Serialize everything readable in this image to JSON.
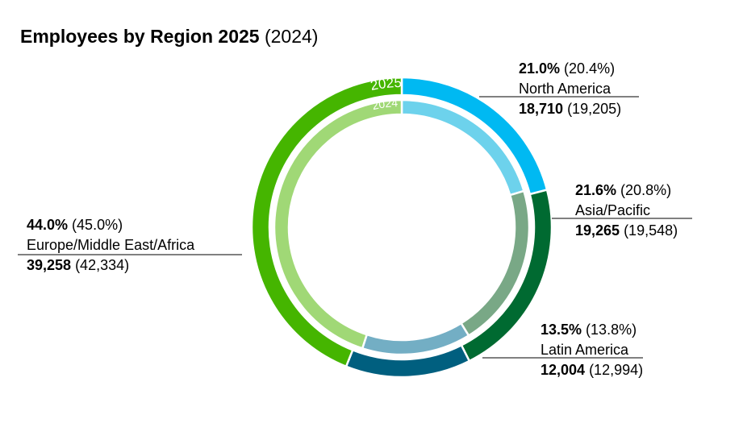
{
  "title": {
    "main": "Employees by Region 2025",
    "prior": "(2024)"
  },
  "ring_labels": {
    "outer": "2025",
    "inner": "2024"
  },
  "chart_data": {
    "type": "donut",
    "title": "Employees by Region 2025 (2024)",
    "categories": [
      "North America",
      "Asia/Pacific",
      "Latin America",
      "Europe/Middle East/Africa"
    ],
    "series": [
      {
        "name": "2025",
        "percent": [
          21.0,
          21.6,
          13.5,
          44.0
        ],
        "values": [
          18710,
          19265,
          12004,
          39258
        ],
        "colors": [
          "#00b9f2",
          "#006a31",
          "#005f7f",
          "#45b500"
        ]
      },
      {
        "name": "2024",
        "percent": [
          20.4,
          20.8,
          13.8,
          45.0
        ],
        "values": [
          19205,
          19548,
          12994,
          42334
        ],
        "colors": [
          "#6dd2ec",
          "#79a886",
          "#73aec4",
          "#a0d876"
        ]
      }
    ]
  },
  "labels": [
    {
      "pct": "21.0%",
      "pct_prev": " (20.4%)",
      "region": "North America",
      "count": "18,710",
      "count_prev": " (19,205)"
    },
    {
      "pct": "21.6%",
      "pct_prev": " (20.8%)",
      "region": "Asia/Pacific",
      "count": "19,265",
      "count_prev": " (19,548)"
    },
    {
      "pct": "13.5%",
      "pct_prev": " (13.8%)",
      "region": "Latin America",
      "count": "12,004",
      "count_prev": " (12,994)"
    },
    {
      "pct": "44.0%",
      "pct_prev": " (45.0%)",
      "region": "Europe/Middle East/Africa",
      "count": "39,258",
      "count_prev": " (42,334)"
    }
  ]
}
